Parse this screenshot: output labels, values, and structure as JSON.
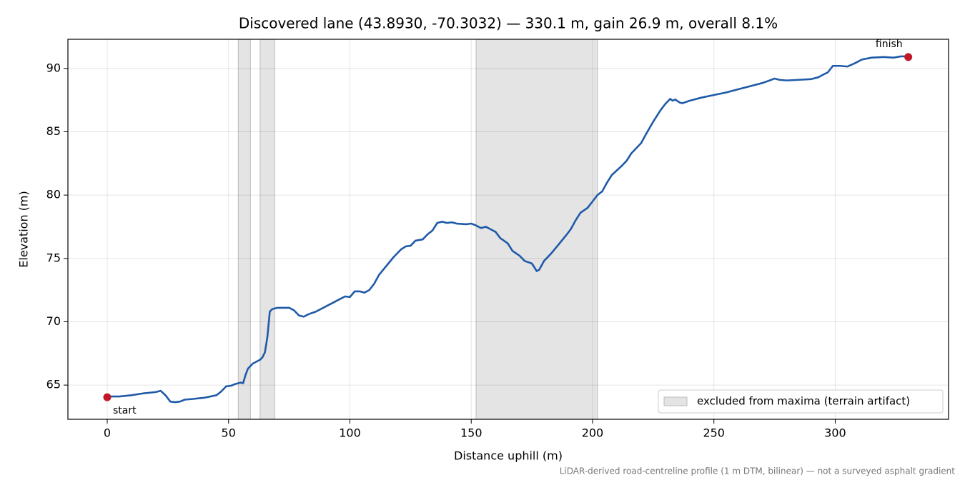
{
  "chart_data": {
    "type": "line",
    "title": "Discovered lane (43.8930, -70.3032) — 330.1 m, gain 26.9 m, overall 8.1%",
    "xlabel": "Distance uphill (m)",
    "ylabel": "Elevation (m)",
    "footnote": "LiDAR-derived road-centreline profile (1 m DTM, bilinear) — not a surveyed asphalt gradient",
    "color": "#1f5aa8",
    "x": [
      0,
      5,
      10,
      15,
      20,
      22,
      24,
      26,
      28,
      30,
      32,
      35,
      40,
      45,
      47,
      49,
      51,
      53,
      55,
      56,
      57,
      58,
      60,
      63,
      64,
      65,
      66,
      67,
      68,
      70,
      73,
      75,
      77,
      79,
      81,
      83,
      86,
      90,
      95,
      98,
      100,
      102,
      104,
      106,
      108,
      110,
      112,
      115,
      118,
      121,
      123,
      125,
      127,
      130,
      132,
      134,
      136,
      138,
      140,
      142,
      144,
      148,
      150,
      152,
      154,
      156,
      158,
      160,
      162,
      165,
      167,
      170,
      172,
      175,
      177,
      178,
      180,
      183,
      186,
      189,
      191,
      193,
      195,
      198,
      200,
      202,
      204,
      206,
      208,
      212,
      214,
      216,
      218,
      220,
      222,
      225,
      228,
      230,
      232,
      233,
      234,
      236,
      237,
      240,
      245,
      250,
      255,
      260,
      265,
      270,
      273,
      275,
      277,
      280,
      285,
      290,
      293,
      295,
      297,
      299,
      302,
      305,
      308,
      311,
      315,
      320,
      324,
      327,
      330.1
    ],
    "values": [
      64.1,
      64.1,
      64.2,
      64.35,
      64.45,
      64.55,
      64.2,
      63.7,
      63.65,
      63.7,
      63.85,
      63.9,
      64.0,
      64.2,
      64.5,
      64.9,
      64.95,
      65.1,
      65.2,
      65.15,
      65.8,
      66.3,
      66.7,
      67.0,
      67.2,
      67.6,
      68.8,
      70.8,
      71.0,
      71.1,
      71.1,
      71.1,
      70.9,
      70.5,
      70.4,
      70.6,
      70.8,
      71.2,
      71.7,
      72.0,
      71.95,
      72.4,
      72.4,
      72.3,
      72.5,
      73.0,
      73.7,
      74.4,
      75.1,
      75.7,
      75.95,
      76.0,
      76.4,
      76.5,
      76.9,
      77.2,
      77.8,
      77.9,
      77.8,
      77.85,
      77.75,
      77.7,
      77.75,
      77.6,
      77.4,
      77.5,
      77.3,
      77.1,
      76.6,
      76.2,
      75.6,
      75.2,
      74.8,
      74.6,
      74.0,
      74.1,
      74.8,
      75.4,
      76.1,
      76.8,
      77.3,
      78.0,
      78.6,
      79.0,
      79.5,
      80.0,
      80.3,
      81.0,
      81.6,
      82.3,
      82.7,
      83.3,
      83.7,
      84.1,
      84.8,
      85.8,
      86.7,
      87.2,
      87.6,
      87.45,
      87.55,
      87.3,
      87.25,
      87.45,
      87.7,
      87.9,
      88.1,
      88.35,
      88.6,
      88.85,
      89.05,
      89.2,
      89.1,
      89.05,
      89.1,
      89.15,
      89.3,
      89.5,
      89.7,
      90.2,
      90.2,
      90.15,
      90.4,
      90.7,
      90.85,
      90.9,
      90.85,
      90.95,
      90.95
    ],
    "bands": {
      "label": "excluded from maxima (terrain artifact)",
      "color": "#d9d9d9",
      "ranges": [
        [
          54,
          59
        ],
        [
          63,
          69
        ],
        [
          152,
          202
        ]
      ]
    },
    "points": [
      {
        "label": "start",
        "x": 0,
        "y": 64.04,
        "color": "#c0182a"
      },
      {
        "label": "finish",
        "x": 330.1,
        "y": 90.9,
        "color": "#c0182a"
      }
    ],
    "xlim": [
      -16.2,
      346.7
    ],
    "ylim": [
      62.3,
      92.3
    ],
    "xticks": [
      0,
      50,
      100,
      150,
      200,
      250,
      300
    ],
    "yticks": [
      65,
      70,
      75,
      80,
      85,
      90
    ],
    "grid": true,
    "legend": "lower right"
  }
}
